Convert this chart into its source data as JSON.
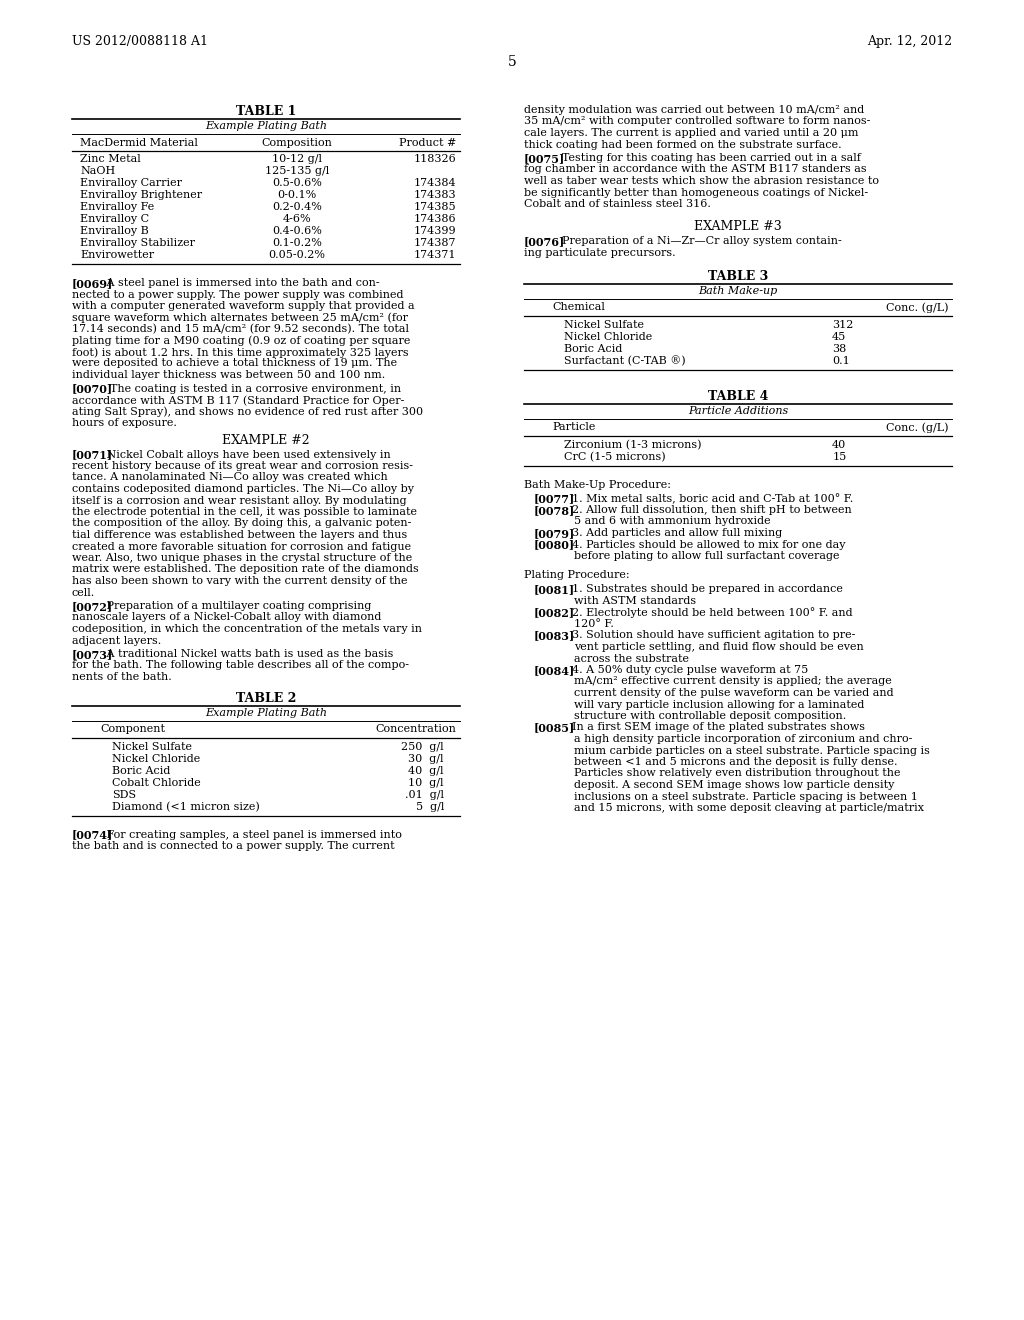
{
  "background_color": "#ffffff",
  "page_number": "5",
  "header_left": "US 2012/0088118 A1",
  "header_right": "Apr. 12, 2012",
  "table1_title": "TABLE 1",
  "table1_subtitle": "Example Plating Bath",
  "table1_col1": "MacDermid Material",
  "table1_col2": "Composition",
  "table1_col3": "Product #",
  "table1_rows": [
    [
      "Zinc Metal",
      "10-12 g/l",
      "118326"
    ],
    [
      "NaOH",
      "125-135 g/l",
      ""
    ],
    [
      "Enviralloy Carrier",
      "0.5-0.6%",
      "174384"
    ],
    [
      "Enviralloy Brightener",
      "0-0.1%",
      "174383"
    ],
    [
      "Enviralloy Fe",
      "0.2-0.4%",
      "174385"
    ],
    [
      "Enviralloy C",
      "4-6%",
      "174386"
    ],
    [
      "Enviralloy B",
      "0.4-0.6%",
      "174399"
    ],
    [
      "Enviralloy Stabilizer",
      "0.1-0.2%",
      "174387"
    ],
    [
      "Envirowetter",
      "0.05-0.2%",
      "174371"
    ]
  ],
  "table2_title": "TABLE 2",
  "table2_subtitle": "Example Plating Bath",
  "table2_col1": "Component",
  "table2_col2": "Concentration",
  "table2_rows": [
    [
      "Nickel Sulfate",
      "250  g/l"
    ],
    [
      "Nickel Chloride",
      "30  g/l"
    ],
    [
      "Boric Acid",
      "40  g/l"
    ],
    [
      "Cobalt Chloride",
      "10  g/l"
    ],
    [
      "SDS",
      ".01  g/l"
    ],
    [
      "Diamond (<1 micron size)",
      "5  g/l"
    ]
  ],
  "table3_title": "TABLE 3",
  "table3_subtitle": "Bath Make-up",
  "table3_col1": "Chemical",
  "table3_col2": "Conc. (g/L)",
  "table3_rows": [
    [
      "Nickel Sulfate",
      "312"
    ],
    [
      "Nickel Chloride",
      "45"
    ],
    [
      "Boric Acid",
      "38"
    ],
    [
      "Surfactant (C-TAB ®)",
      "0.1"
    ]
  ],
  "table4_title": "TABLE 4",
  "table4_subtitle": "Particle Additions",
  "table4_col1": "Particle",
  "table4_col2": "Conc. (g/L)",
  "table4_rows": [
    [
      "Zirconium (1-3 microns)",
      "40"
    ],
    [
      "CrC (1-5 microns)",
      "15"
    ]
  ]
}
